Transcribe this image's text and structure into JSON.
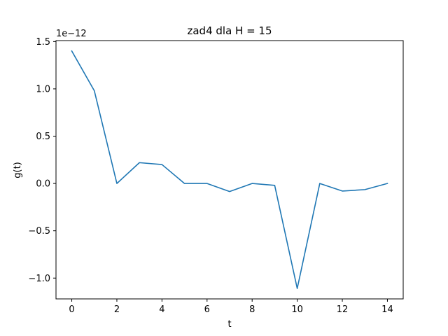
{
  "chart_data": {
    "type": "line",
    "title": "zad4 dla H = 15",
    "xlabel": "t",
    "ylabel": "g(t)",
    "y_offset_label": "1e−12",
    "xlim": [
      -0.7,
      14.7
    ],
    "ylim": [
      -1.22,
      1.51
    ],
    "x_ticks": [
      0,
      2,
      4,
      6,
      8,
      10,
      12,
      14
    ],
    "x_tick_labels": [
      "0",
      "2",
      "4",
      "6",
      "8",
      "10",
      "12",
      "14"
    ],
    "y_ticks": [
      -1.0,
      -0.5,
      0.0,
      0.5,
      1.0,
      1.5
    ],
    "y_tick_labels": [
      "−1.0",
      "−0.5",
      "0.0",
      "0.5",
      "1.0",
      "1.5"
    ],
    "grid": false,
    "series": [
      {
        "color": "#1f77b4",
        "x": [
          0,
          1,
          2,
          3,
          4,
          5,
          6,
          7,
          8,
          9,
          10,
          11,
          12,
          13,
          14
        ],
        "values": [
          1.4,
          0.98,
          0.0,
          0.22,
          0.2,
          0.0,
          0.0,
          -0.085,
          0.0,
          -0.02,
          -1.11,
          0.0,
          -0.08,
          -0.065,
          0.0
        ]
      }
    ]
  }
}
